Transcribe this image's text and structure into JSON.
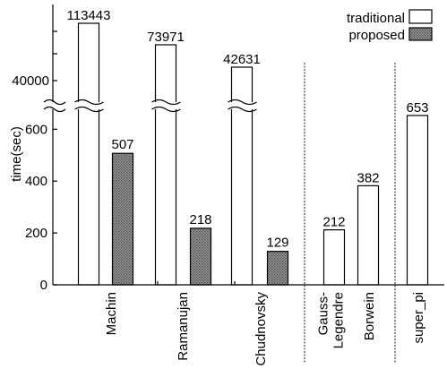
{
  "chart_data": {
    "type": "bar",
    "title": "",
    "xlabel": "",
    "ylabel": "time(sec)",
    "ylim": [
      0,
      800
    ],
    "axis_break": {
      "lower_max": 700,
      "upper_tick": 40000,
      "upper_tick_label": "40000"
    },
    "y_ticks": [
      {
        "value": 0,
        "label": "0"
      },
      {
        "value": 200,
        "label": "200"
      },
      {
        "value": 400,
        "label": "400"
      },
      {
        "value": 600,
        "label": "600"
      }
    ],
    "grid": false,
    "legend_position": "top-right",
    "categories": [
      "Machin",
      "Ramanujan",
      "Chudnovsky",
      "Gauss-\nLegendre",
      "Borwein",
      "super_pi"
    ],
    "group_dividers": [
      3,
      5
    ],
    "series": [
      {
        "name": "traditional",
        "values": [
          113443,
          73971,
          42631,
          212,
          382,
          653
        ],
        "labels": [
          "113443",
          "73971",
          "42631",
          "212",
          "382",
          "653"
        ]
      },
      {
        "name": "proposed",
        "values": [
          507,
          218,
          129,
          null,
          null,
          null
        ],
        "labels": [
          "507",
          "218",
          "129",
          "",
          "",
          ""
        ]
      }
    ],
    "colors": {
      "traditional": "#ffffff",
      "proposed": "#8a8a8a",
      "axis": "#000000"
    }
  }
}
